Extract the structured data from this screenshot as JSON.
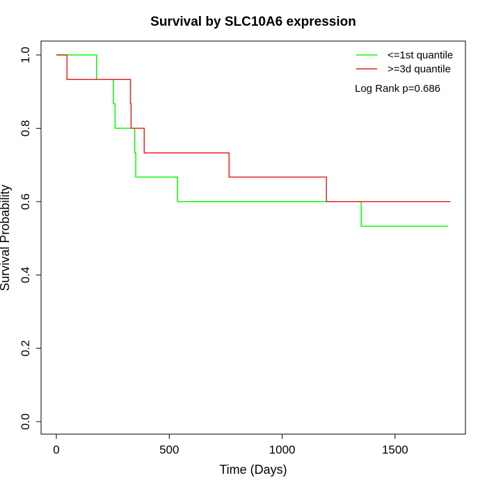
{
  "chart_data": {
    "type": "line",
    "step": true,
    "title": "Survival by SLC10A6 expression",
    "xlabel": "Time (Days)",
    "ylabel": "Survival Probability",
    "xlim": [
      0,
      1750
    ],
    "ylim": [
      0,
      1.0
    ],
    "x_ticks": [
      0,
      500,
      1000,
      1500
    ],
    "y_ticks": [
      0.0,
      0.2,
      0.4,
      0.6,
      0.8,
      1.0
    ],
    "x_tick_labels": [
      "0",
      "500",
      "1000",
      "1500"
    ],
    "y_tick_labels": [
      "0.0",
      "0.2",
      "0.4",
      "0.6",
      "0.8",
      "1.0"
    ],
    "legend_position": "top-right",
    "annotation": "Log Rank p=0.686",
    "series": [
      {
        "name": "<=1st quantile",
        "color": "#00ff00",
        "x": [
          0,
          178,
          178,
          253,
          253,
          260,
          260,
          347,
          347,
          352,
          352,
          537,
          537,
          1350,
          1350,
          1733
        ],
        "y": [
          1.0,
          1.0,
          0.933,
          0.933,
          0.867,
          0.867,
          0.8,
          0.8,
          0.733,
          0.733,
          0.667,
          0.667,
          0.6,
          0.6,
          0.533,
          0.533
        ]
      },
      {
        "name": ">=3d quantile",
        "color": "#e8251a",
        "x": [
          0,
          47,
          47,
          328,
          328,
          331,
          331,
          389,
          389,
          765,
          765,
          1196,
          1196,
          1745
        ],
        "y": [
          1.0,
          1.0,
          0.933,
          0.933,
          0.867,
          0.867,
          0.8,
          0.8,
          0.733,
          0.733,
          0.667,
          0.667,
          0.6,
          0.6
        ]
      }
    ]
  }
}
